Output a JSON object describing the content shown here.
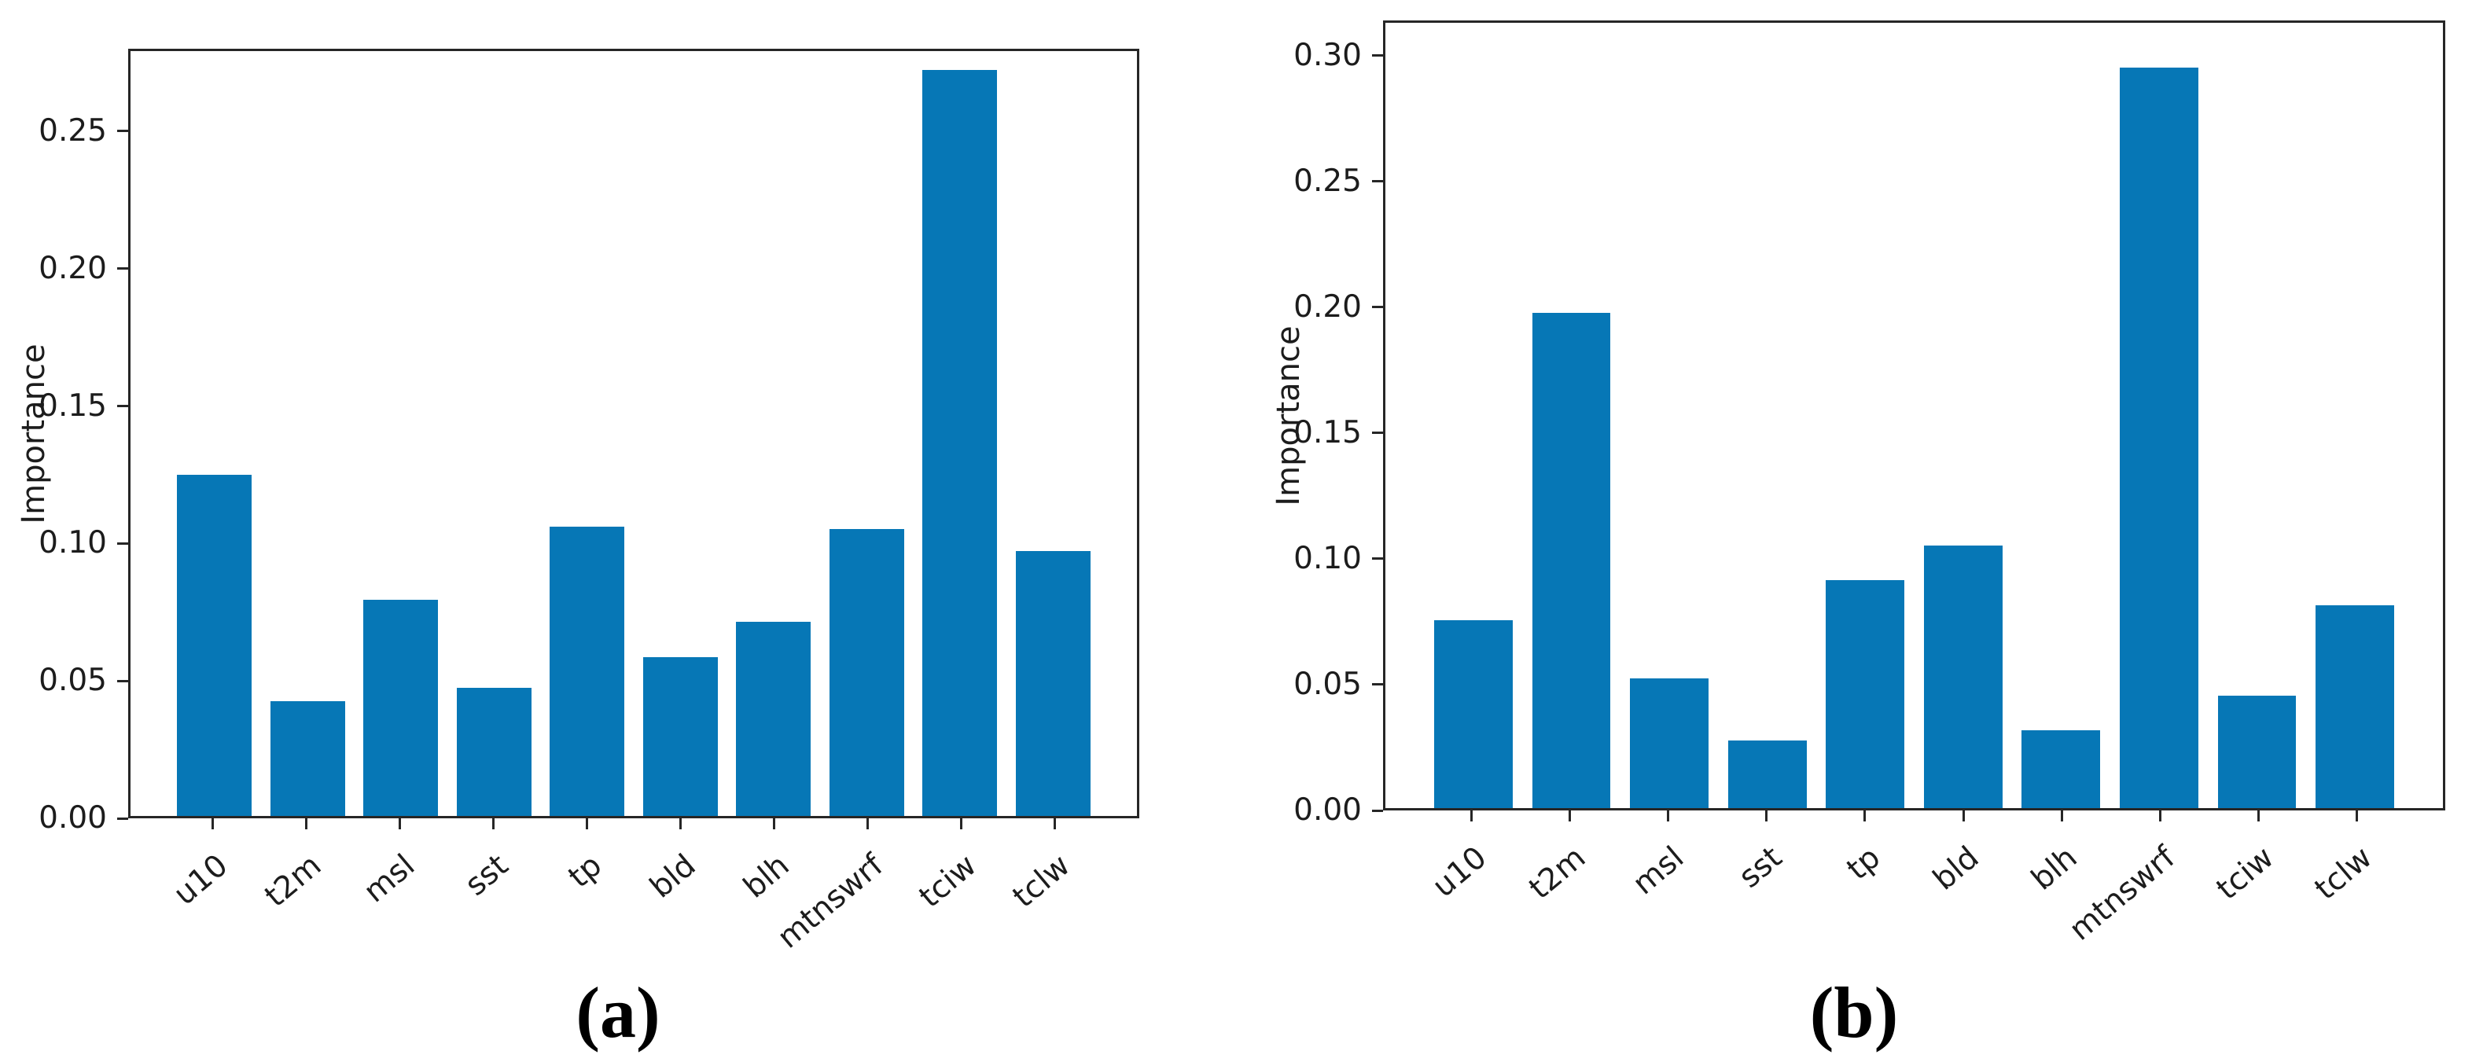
{
  "figure": {
    "background": "#ffffff",
    "description_colors": {
      "bar_fill": "#0677b6",
      "axis_line": "#262626",
      "tick_text": "#1c1c1c",
      "caption_text": "#000000"
    }
  },
  "panels": [
    {
      "caption": "(a)"
    },
    {
      "caption": "(b)"
    }
  ],
  "chart_data": [
    {
      "type": "bar",
      "title": "",
      "xlabel": "",
      "ylabel": "Importance",
      "categories": [
        "u10",
        "t2m",
        "msl",
        "sst",
        "tp",
        "bld",
        "blh",
        "mtnswrf",
        "tciw",
        "tclw"
      ],
      "values": [
        0.125,
        0.042,
        0.079,
        0.047,
        0.106,
        0.058,
        0.071,
        0.105,
        0.273,
        0.097
      ],
      "ylim": [
        0,
        0.28
      ],
      "yticks": [
        0.0,
        0.05,
        0.1,
        0.15,
        0.2,
        0.25
      ],
      "ytick_format_decimals": 2,
      "xtick_rotation_deg": 40,
      "grid": false,
      "legend": null,
      "bar_color": "#0677b6"
    },
    {
      "type": "bar",
      "title": "",
      "xlabel": "",
      "ylabel": "Importance",
      "categories": [
        "u10",
        "t2m",
        "msl",
        "sst",
        "tp",
        "bld",
        "blh",
        "mtnswrf",
        "tciw",
        "tclw"
      ],
      "values": [
        0.075,
        0.198,
        0.052,
        0.027,
        0.091,
        0.105,
        0.031,
        0.296,
        0.045,
        0.081
      ],
      "ylim": [
        0,
        0.314
      ],
      "yticks": [
        0.0,
        0.05,
        0.1,
        0.15,
        0.2,
        0.25,
        0.3
      ],
      "ytick_format_decimals": 2,
      "xtick_rotation_deg": 40,
      "grid": false,
      "legend": null,
      "bar_color": "#0677b6"
    }
  ]
}
